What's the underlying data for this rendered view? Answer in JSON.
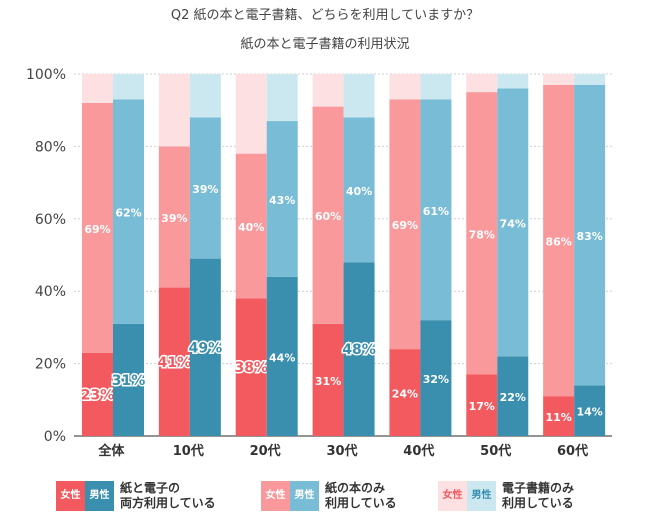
{
  "chart_data": {
    "type": "bar",
    "title": "Q2 紙の本と電子書籍、どちらを利用していますか？",
    "subtitle": "紙の本と電子書籍の利用状況",
    "categories": [
      "全体",
      "10代",
      "20代",
      "30代",
      "40代",
      "50代",
      "60代"
    ],
    "stacked": true,
    "ylim": [
      0,
      100
    ],
    "yticks": [
      "0%",
      "20%",
      "40%",
      "60%",
      "80%",
      "100%"
    ],
    "groups": [
      "女性",
      "男性"
    ],
    "series": [
      {
        "name": "紙と電子の両方利用している",
        "female": [
          23,
          41,
          38,
          31,
          24,
          17,
          11
        ],
        "male": [
          31,
          49,
          44,
          48,
          32,
          22,
          14
        ]
      },
      {
        "name": "紙の本のみ利用している",
        "female": [
          69,
          39,
          40,
          60,
          69,
          78,
          86
        ],
        "male": [
          62,
          39,
          43,
          40,
          61,
          74,
          83
        ]
      },
      {
        "name": "電子書籍のみ利用している",
        "female": [
          8,
          20,
          22,
          9,
          7,
          5,
          3
        ],
        "male": [
          7,
          12,
          13,
          12,
          7,
          4,
          3
        ]
      }
    ],
    "highlighted_labels": {
      "female": [
        true,
        true,
        true,
        false,
        false,
        false,
        false
      ],
      "male": [
        true,
        true,
        false,
        true,
        false,
        false,
        false
      ]
    },
    "colors": {
      "female": [
        "#f25a5f",
        "#f9999b",
        "#fde0e1"
      ],
      "male": [
        "#3a8fae",
        "#79bcd5",
        "#cbe8f1"
      ],
      "highlight_text_female": "#f25a5f",
      "highlight_text_male": "#3a8fae",
      "grid": "#cfcfcf",
      "axis": "#555555"
    }
  },
  "legend": [
    {
      "female": "女性",
      "male": "男性",
      "label": "紙と電子の\n両方利用している"
    },
    {
      "female": "女性",
      "male": "男性",
      "label": "紙の本のみ\n利用している"
    },
    {
      "female": "女性",
      "male": "男性",
      "label": "電子書籍のみ\n利用している"
    }
  ]
}
